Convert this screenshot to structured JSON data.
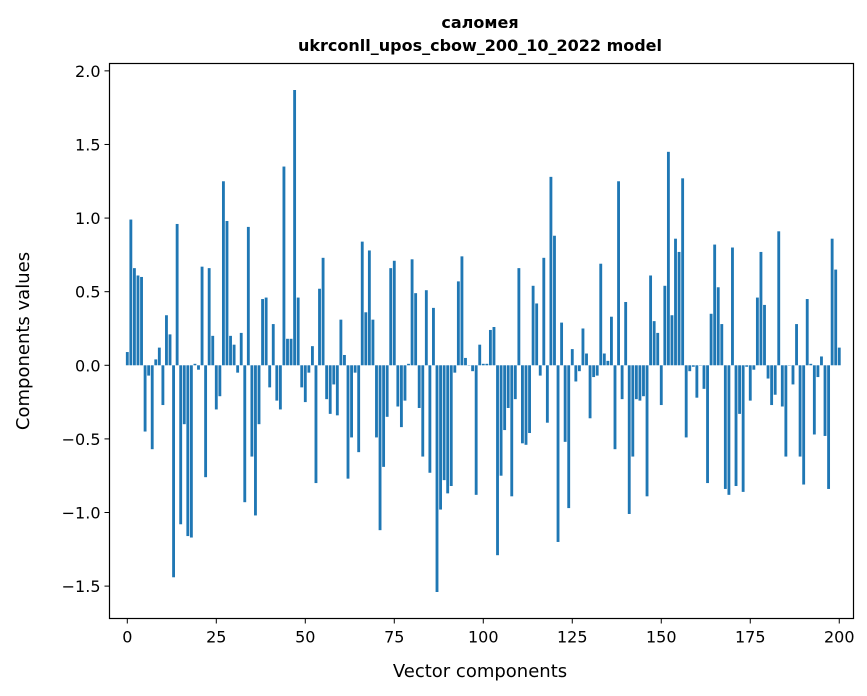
{
  "chart_data": {
    "type": "bar",
    "title": "саломея",
    "subtitle": "ukrconll_upos_cbow_200_10_2022 model",
    "xlabel": "Vector components",
    "ylabel": "Components values",
    "xlim": [
      -5,
      204
    ],
    "ylim": [
      -1.72,
      2.05
    ],
    "xticks": [
      0,
      25,
      50,
      75,
      100,
      125,
      150,
      175,
      200
    ],
    "xtick_labels": [
      "0",
      "25",
      "50",
      "75",
      "100",
      "125",
      "150",
      "175",
      "200"
    ],
    "yticks": [
      -1.5,
      -1.0,
      -0.5,
      0.0,
      0.5,
      1.0,
      1.5,
      2.0
    ],
    "ytick_labels": [
      "−1.5",
      "−1.0",
      "−0.5",
      "0.0",
      "0.5",
      "1.0",
      "1.5",
      "2.0"
    ],
    "grid": false,
    "bar_color": "#1f77b4",
    "values": [
      0.09,
      0.99,
      0.66,
      0.61,
      0.6,
      -0.45,
      -0.07,
      -0.57,
      0.04,
      0.12,
      -0.27,
      0.34,
      0.21,
      -1.44,
      0.96,
      -1.08,
      -0.4,
      -1.16,
      -1.17,
      0.01,
      -0.03,
      0.67,
      -0.76,
      0.66,
      0.2,
      -0.3,
      -0.21,
      1.25,
      0.98,
      0.2,
      0.14,
      -0.05,
      0.22,
      -0.93,
      0.94,
      -0.62,
      -1.02,
      -0.4,
      0.45,
      0.46,
      -0.15,
      0.28,
      -0.24,
      -0.3,
      1.35,
      0.18,
      0.18,
      1.87,
      0.46,
      -0.15,
      -0.25,
      -0.05,
      0.13,
      -0.8,
      0.52,
      0.73,
      -0.23,
      -0.33,
      -0.13,
      -0.34,
      0.31,
      0.07,
      -0.77,
      -0.49,
      -0.05,
      -0.59,
      0.84,
      0.36,
      0.78,
      0.31,
      -0.49,
      -1.12,
      -0.69,
      -0.35,
      0.66,
      0.71,
      -0.28,
      -0.42,
      -0.24,
      0.01,
      0.72,
      0.49,
      -0.29,
      -0.62,
      0.51,
      -0.73,
      0.39,
      -1.54,
      -0.98,
      -0.78,
      -0.87,
      -0.82,
      -0.05,
      0.57,
      0.74,
      0.05,
      0.0,
      -0.04,
      -0.88,
      0.14,
      0.01,
      0.01,
      0.24,
      0.26,
      -1.29,
      -0.75,
      -0.44,
      -0.29,
      -0.89,
      -0.23,
      0.66,
      -0.53,
      -0.54,
      -0.46,
      0.54,
      0.42,
      -0.07,
      0.73,
      -0.39,
      1.28,
      0.88,
      -1.2,
      0.29,
      -0.52,
      -0.97,
      0.11,
      -0.11,
      -0.04,
      0.25,
      0.08,
      -0.36,
      -0.08,
      -0.07,
      0.69,
      0.08,
      0.03,
      0.33,
      -0.57,
      1.25,
      -0.23,
      0.43,
      -1.01,
      -0.62,
      -0.23,
      -0.24,
      -0.21,
      -0.89,
      0.61,
      0.3,
      0.22,
      -0.27,
      0.54,
      1.45,
      0.34,
      0.86,
      0.77,
      1.27,
      -0.49,
      -0.04,
      -0.01,
      -0.22,
      0.0,
      -0.16,
      -0.8,
      0.35,
      0.82,
      0.53,
      0.28,
      -0.84,
      -0.88,
      0.8,
      -0.82,
      -0.33,
      -0.86,
      -0.01,
      -0.24,
      -0.03,
      0.46,
      0.77,
      0.41,
      -0.09,
      -0.27,
      -0.2,
      0.91,
      -0.28,
      -0.62,
      0.0,
      -0.13,
      0.28,
      -0.62,
      -0.81,
      0.45,
      0.01,
      -0.47,
      -0.08,
      0.06,
      -0.48,
      -0.84,
      0.86,
      0.65,
      0.12
    ]
  }
}
